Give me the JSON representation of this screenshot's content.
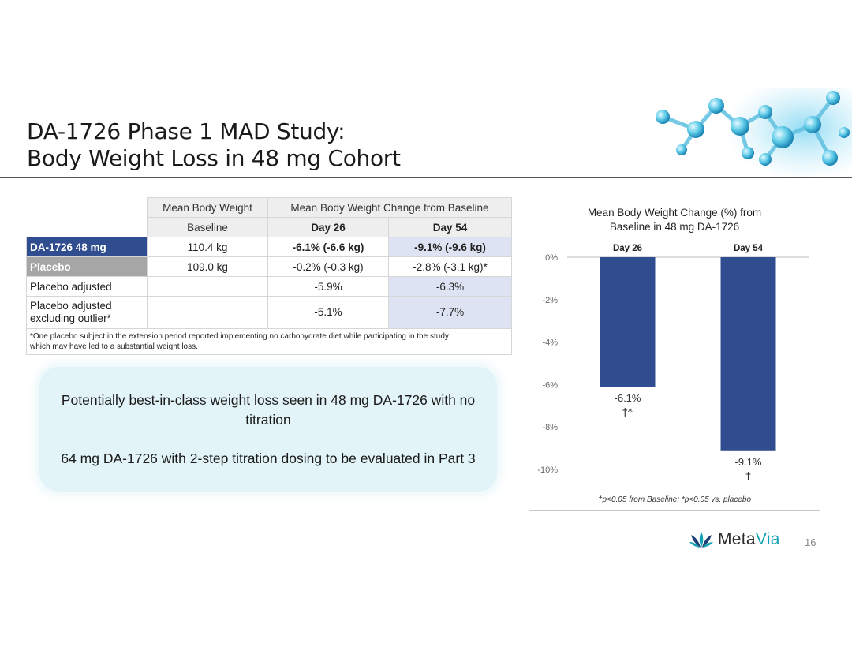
{
  "slide": {
    "title_line1": "DA-1726 Phase 1 MAD Study:",
    "title_line2": "Body Weight Loss in 48 mg Cohort",
    "page_number": "16",
    "logo_brand": "Meta",
    "logo_brand_accent": "Via",
    "colors": {
      "navy": "#2f4d8f",
      "teal": "#15a3b3",
      "callout_bg": "#e2f4f8",
      "placebo_gray": "#a6a6a6"
    }
  },
  "table": {
    "col_mean_body_weight": "Mean Body Weight",
    "col_change_from_baseline": "Mean Body Weight Change from Baseline",
    "sub_baseline": "Baseline",
    "sub_day26": "Day 26",
    "sub_day54": "Day 54",
    "rows": [
      {
        "label": "DA-1726 48 mg",
        "baseline": "110.4 kg",
        "day26": "-6.1% (-6.6 kg)",
        "day54": "-9.1% (-9.6 kg)"
      },
      {
        "label": "Placebo",
        "baseline": "109.0 kg",
        "day26": "-0.2% (-0.3 kg)",
        "day54": "-2.8% (-3.1 kg)*"
      },
      {
        "label": "Placebo adjusted",
        "baseline": "",
        "day26": "-5.9%",
        "day54": "-6.3%"
      },
      {
        "label_line1": "Placebo adjusted",
        "label_line2": "excluding outlier*",
        "baseline": "",
        "day26": "-5.1%",
        "day54": "-7.7%"
      }
    ],
    "footnote_line1": "*One placebo subject in the extension period reported implementing no carbohydrate diet while participating in the study",
    "footnote_line2": "which may have led to a substantial weight loss."
  },
  "callout": {
    "line1": "Potentially best-in-class weight loss seen in 48 mg DA-1726 with no titration",
    "line2": "64 mg DA-1726 with 2-step titration dosing to be evaluated in Part 3"
  },
  "chart_data": {
    "type": "bar",
    "title_line1": "Mean Body Weight Change (%) from",
    "title_line2": "Baseline in 48 mg DA-1726",
    "categories": [
      "Day 26",
      "Day 54"
    ],
    "values": [
      -6.1,
      -9.1
    ],
    "value_labels": [
      "-6.1%",
      "-9.1%"
    ],
    "significance": [
      "†*",
      "†"
    ],
    "ylim": [
      -10,
      0
    ],
    "yticks": [
      "0%",
      "-2%",
      "-4%",
      "-6%",
      "-8%",
      "-10%"
    ],
    "category_axis_position": "top",
    "bar_color": "#2f4d8f",
    "footnote": "†p<0.05 from Baseline; *p<0.05 vs. placebo"
  }
}
